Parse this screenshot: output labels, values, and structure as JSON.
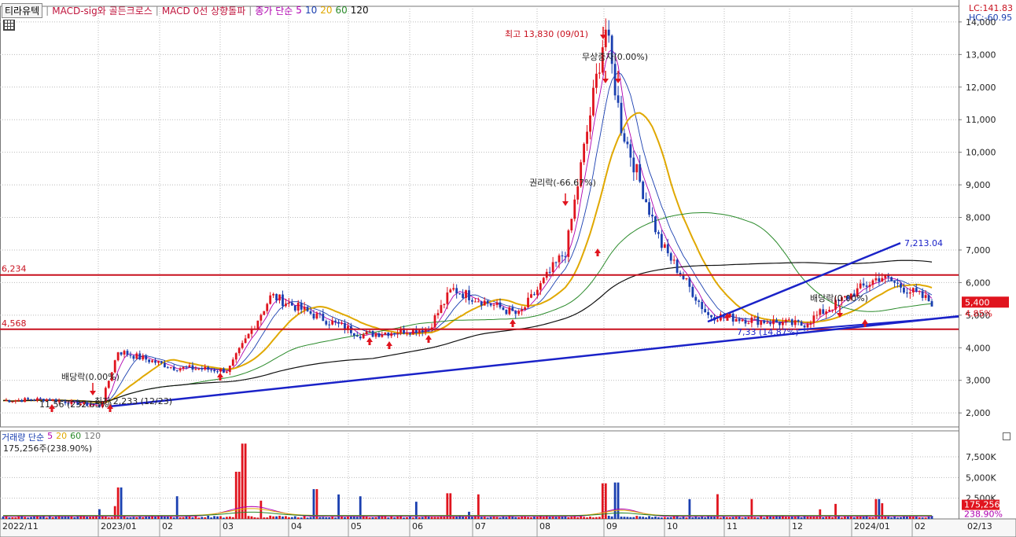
{
  "header": {
    "stock_name": "티라유텍",
    "indicator1": "MACD-sig와 골든크로스",
    "indicator2": "MACD 0선 상향돌파",
    "ma_label": "종가 단순",
    "ma_periods": [
      "5",
      "10",
      "20",
      "60",
      "120"
    ]
  },
  "lc_hc": {
    "lc": "LC:141.83",
    "hc": "HC:-60.95"
  },
  "volume_header": {
    "label": "거래량 단순",
    "periods": [
      "5",
      "20",
      "60",
      "120"
    ],
    "current": "175,256주(238.90%)"
  },
  "colors": {
    "up": "#e0141e",
    "down": "#1a3fb0",
    "ma5": "#b000b0",
    "ma10": "#1a3fb0",
    "ma20": "#e0a800",
    "ma60": "#2a8a2a",
    "ma120": "#111111",
    "hline": "#c8101e",
    "trend": "#1a22c8"
  },
  "chart_data": {
    "type": "candlestick",
    "price_axis": {
      "ticks": [
        2000,
        3000,
        4000,
        5000,
        6000,
        7000,
        8000,
        9000,
        10000,
        11000,
        12000,
        13000,
        14000
      ],
      "tick_labels": [
        "2,000",
        "3,000",
        "4,000",
        "5,000",
        "6,000",
        "7,000",
        "8,000",
        "9,000",
        "10,000",
        "11,000",
        "12,000",
        "13,000",
        "14,000"
      ],
      "range": [
        1570,
        14480
      ]
    },
    "volume_axis": {
      "ticks": [
        2500,
        5000,
        7500
      ],
      "tick_labels": [
        "2,500K",
        "5,000K",
        "7,500K"
      ],
      "range": [
        0,
        9500
      ]
    },
    "x_labels": [
      "2022/11",
      "2023/01",
      "02",
      "03",
      "04",
      "05",
      "06",
      "07",
      "08",
      "09",
      "10",
      "11",
      "12",
      "2024/01",
      "02",
      "02/13"
    ],
    "horizontal_lines": [
      {
        "label": "6,234",
        "value": 6234
      },
      {
        "label": "4,568",
        "value": 4568
      }
    ],
    "price_series": [
      {
        "m": "2022/11",
        "p": 2380
      },
      {
        "m": "2022/12",
        "p": 2420
      },
      {
        "m": "2023/01",
        "p": 2200
      },
      {
        "m": "2023/01",
        "p": 3900
      },
      {
        "m": "2023/02",
        "p": 3400
      },
      {
        "m": "2023/03",
        "p": 3300
      },
      {
        "m": "2023/03",
        "p": 5600
      },
      {
        "m": "2023/04",
        "p": 5000
      },
      {
        "m": "2023/05",
        "p": 4400
      },
      {
        "m": "2023/06",
        "p": 4600
      },
      {
        "m": "2023/07",
        "p": 5800
      },
      {
        "m": "2023/08",
        "p": 5000
      },
      {
        "m": "2023/08",
        "p": 7000
      },
      {
        "m": "2023/09",
        "p": 13830
      },
      {
        "m": "2023/09",
        "p": 10800
      },
      {
        "m": "2023/10",
        "p": 7200
      },
      {
        "m": "2023/11",
        "p": 5000
      },
      {
        "m": "2023/12",
        "p": 4700
      },
      {
        "m": "2024/01",
        "p": 6200
      },
      {
        "m": "2024/02",
        "p": 5400
      }
    ],
    "annotations": [
      {
        "text": "최고 13,830 (09/01)",
        "color": "#c8101e"
      },
      {
        "text": "무상증자(0.00%)",
        "color": "#222"
      },
      {
        "text": "권리락(-66.67%)",
        "color": "#222"
      },
      {
        "text": "배당락(0.00%)",
        "color": "#222"
      },
      {
        "text": "배당락(0.00%)",
        "color": "#222"
      },
      {
        "text": "11.56 (232.65%)",
        "color": "#222"
      },
      {
        "text": "최저 2,233 (12/23)",
        "color": "#222"
      },
      {
        "text": "7,33 (14.87%)",
        "color": "#1a22c8"
      },
      {
        "text": "7,213.04",
        "color": "#1a22c8"
      }
    ],
    "current_price": {
      "label": "5,400",
      "value": 5400
    },
    "current_pct": {
      "label": "4.85%"
    },
    "current_volume": {
      "label": "175,256",
      "pct": "238.90%"
    }
  }
}
